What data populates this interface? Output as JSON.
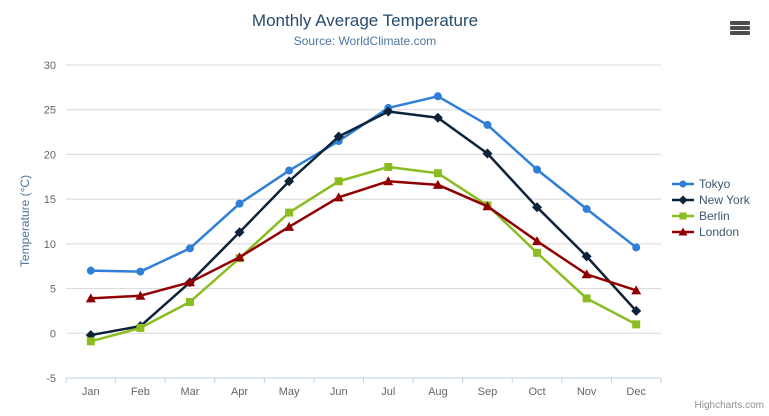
{
  "credits_label": "Highcharts.com",
  "colors": {
    "title": "#274b6d",
    "subtitle": "#4d759e",
    "axis_title": "#4d759e",
    "axis_labels": "#666666",
    "grid": "#d8d8d8",
    "axis_line": "#c0d0e0",
    "legend_text": "#3e576f",
    "credits": "#909090",
    "export_icon": "#4d4d4d"
  },
  "chart_data": {
    "type": "line",
    "title": "Monthly Average Temperature",
    "subtitle": "Source: WorldClimate.com",
    "xlabel": "",
    "ylabel": "Temperature (°C)",
    "ylim": [
      -5,
      30
    ],
    "ytick_step": 5,
    "grid": true,
    "legend_position": "right",
    "categories": [
      "Jan",
      "Feb",
      "Mar",
      "Apr",
      "May",
      "Jun",
      "Jul",
      "Aug",
      "Sep",
      "Oct",
      "Nov",
      "Dec"
    ],
    "series": [
      {
        "name": "Tokyo",
        "color": "#2f7ed8",
        "marker": "circle",
        "values": [
          7.0,
          6.9,
          9.5,
          14.5,
          18.2,
          21.5,
          25.2,
          26.5,
          23.3,
          18.3,
          13.9,
          9.6
        ]
      },
      {
        "name": "New York",
        "color": "#0d233a",
        "marker": "diamond",
        "values": [
          -0.2,
          0.8,
          5.7,
          11.3,
          17.0,
          22.0,
          24.8,
          24.1,
          20.1,
          14.1,
          8.6,
          2.5
        ]
      },
      {
        "name": "Berlin",
        "color": "#8bbc21",
        "marker": "square",
        "values": [
          -0.9,
          0.6,
          3.5,
          8.4,
          13.5,
          17.0,
          18.6,
          17.9,
          14.3,
          9.0,
          3.9,
          1.0
        ]
      },
      {
        "name": "London",
        "color": "#910000",
        "marker": "triangle",
        "values": [
          3.9,
          4.2,
          5.7,
          8.5,
          11.9,
          15.2,
          17.0,
          16.6,
          14.2,
          10.3,
          6.6,
          4.8
        ]
      }
    ]
  }
}
